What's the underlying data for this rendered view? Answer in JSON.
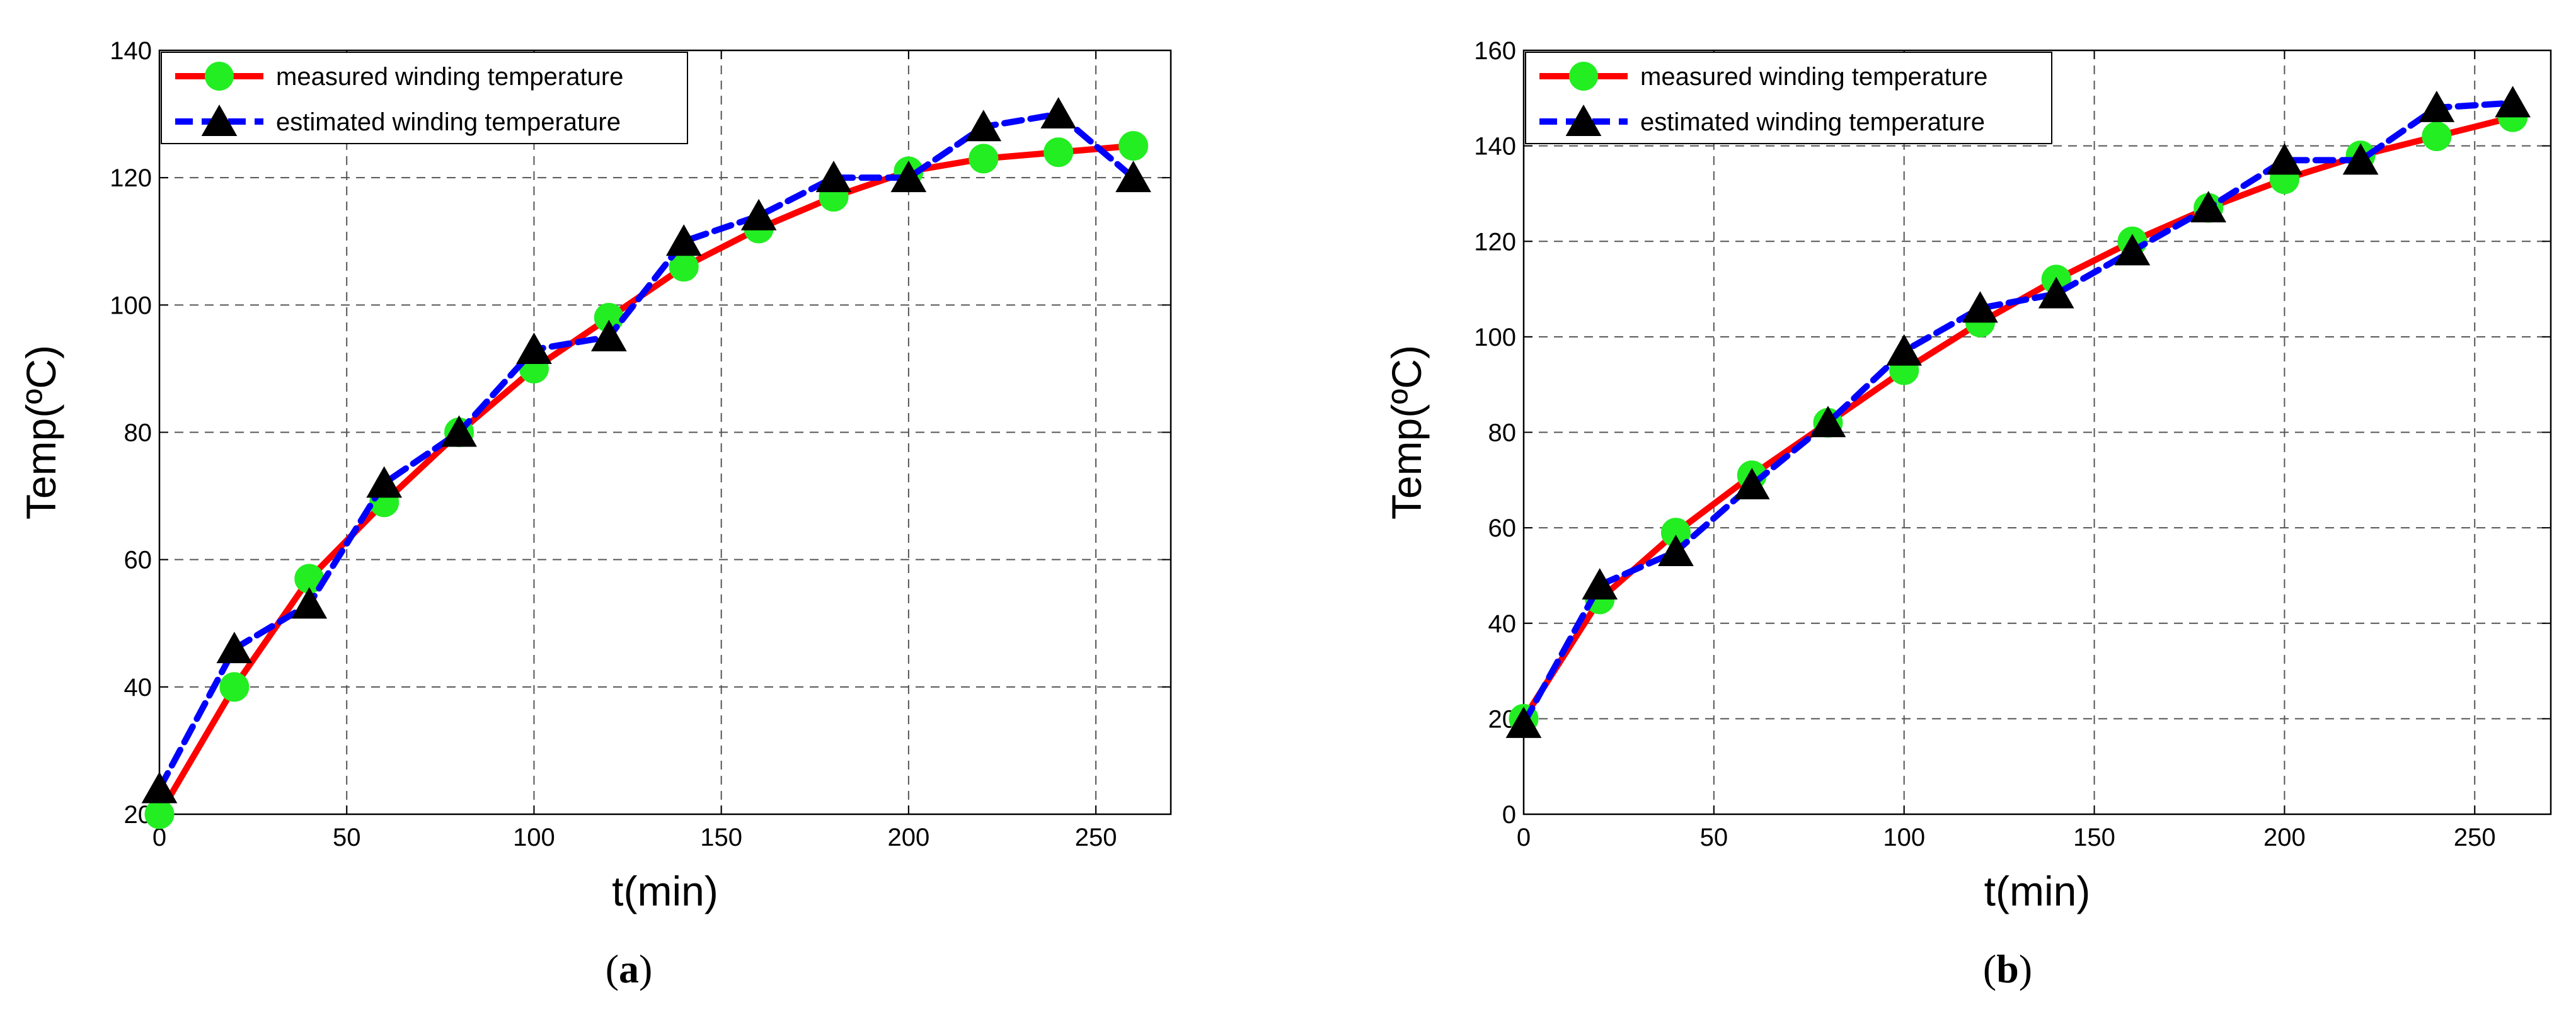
{
  "colors": {
    "measured_line": "#ff0000",
    "measured_marker": "#22ee22",
    "estimated_line": "#0000ff",
    "estimated_marker": "#000000",
    "grid": "#555555"
  },
  "chart_data": [
    {
      "type": "line",
      "panel_label": "a",
      "xlabel": "t(min)",
      "ylabel": "Temp(ºC)",
      "xlim": [
        0,
        270
      ],
      "ylim": [
        20,
        140
      ],
      "xticks": [
        0,
        50,
        100,
        150,
        200,
        250
      ],
      "yticks": [
        20,
        40,
        60,
        80,
        100,
        120,
        140
      ],
      "grid": true,
      "legend_position": "top-left",
      "series": [
        {
          "name": "measured winding temperature",
          "x": [
            0,
            20,
            40,
            60,
            80,
            100,
            120,
            140,
            160,
            180,
            200,
            220,
            240,
            260
          ],
          "y": [
            20,
            40,
            57,
            69,
            80,
            90,
            98,
            106,
            112,
            117,
            121,
            123,
            124,
            125
          ]
        },
        {
          "name": "estimated winding temperature",
          "x": [
            0,
            20,
            40,
            60,
            80,
            100,
            120,
            140,
            160,
            180,
            200,
            220,
            240,
            260
          ],
          "y": [
            24,
            46,
            53,
            72,
            80,
            93,
            95,
            110,
            114,
            120,
            120,
            128,
            130,
            120
          ]
        }
      ]
    },
    {
      "type": "line",
      "panel_label": "b",
      "xlabel": "t(min)",
      "ylabel": "Temp(ºC)",
      "xlim": [
        0,
        270
      ],
      "ylim": [
        0,
        160
      ],
      "xticks": [
        0,
        50,
        100,
        150,
        200,
        250
      ],
      "yticks": [
        0,
        20,
        40,
        60,
        80,
        100,
        120,
        140,
        160
      ],
      "grid": true,
      "legend_position": "top-left",
      "series": [
        {
          "name": "measured winding temperature",
          "x": [
            0,
            20,
            40,
            60,
            80,
            100,
            120,
            140,
            160,
            180,
            200,
            220,
            240,
            260
          ],
          "y": [
            20,
            45,
            59,
            71,
            82,
            93,
            103,
            112,
            120,
            127,
            133,
            138,
            142,
            146
          ]
        },
        {
          "name": "estimated winding temperature",
          "x": [
            0,
            20,
            40,
            60,
            80,
            100,
            120,
            140,
            160,
            180,
            200,
            220,
            240,
            260
          ],
          "y": [
            19,
            48,
            55,
            69,
            82,
            97,
            106,
            109,
            118,
            127,
            137,
            137,
            148,
            149
          ]
        }
      ]
    }
  ]
}
